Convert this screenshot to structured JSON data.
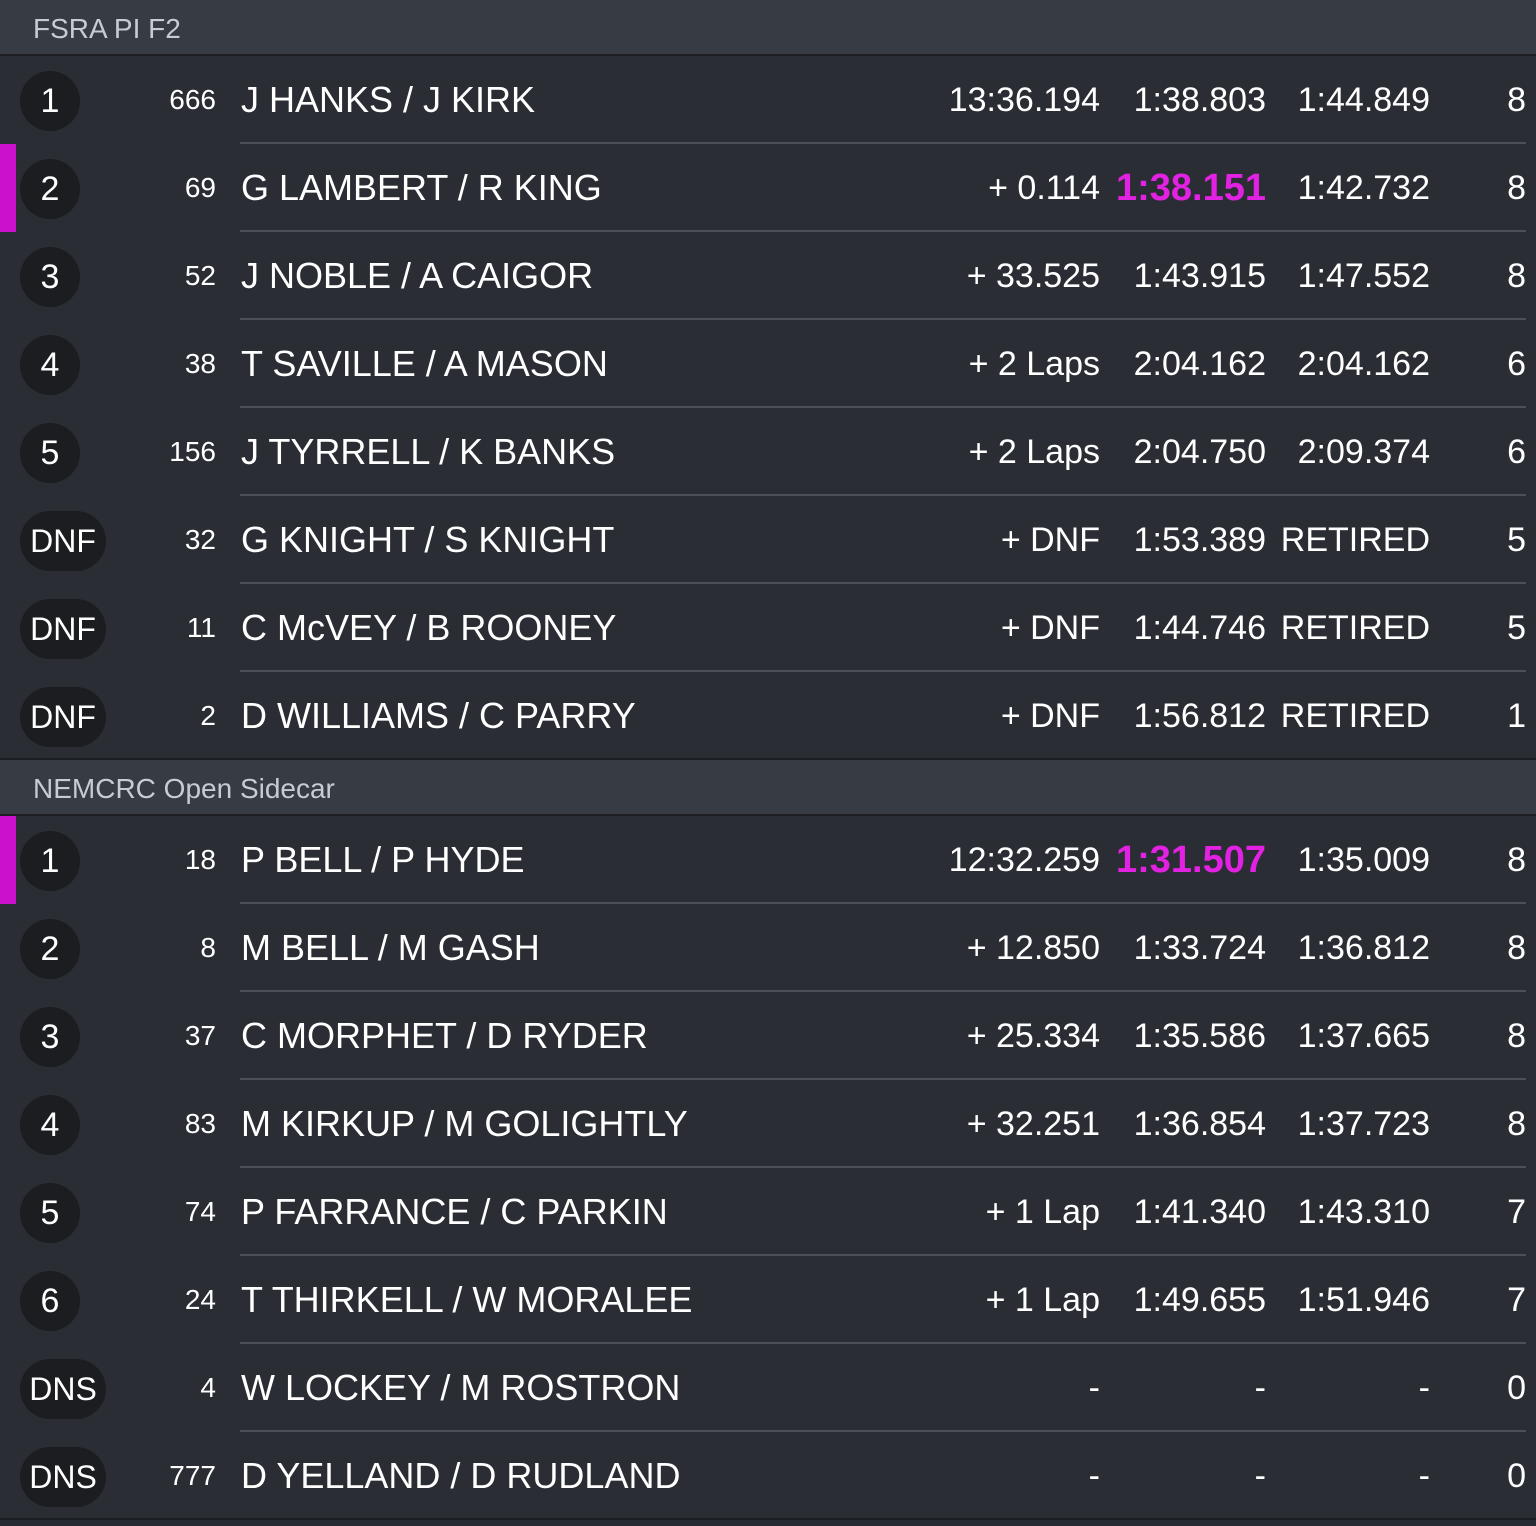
{
  "accent_color": "#cc11cc",
  "sections": [
    {
      "title": "FSRA PI F2",
      "rows": [
        {
          "pos": "1",
          "number": "666",
          "name": "J HANKS / J KIRK",
          "gap": "13:36.194",
          "best": "1:38.803",
          "last": "1:44.849",
          "laps": "8",
          "fastest": false
        },
        {
          "pos": "2",
          "number": "69",
          "name": "G LAMBERT / R KING",
          "gap": "+ 0.114",
          "best": "1:38.151",
          "last": "1:42.732",
          "laps": "8",
          "fastest": true
        },
        {
          "pos": "3",
          "number": "52",
          "name": "J NOBLE / A CAIGOR",
          "gap": "+ 33.525",
          "best": "1:43.915",
          "last": "1:47.552",
          "laps": "8",
          "fastest": false
        },
        {
          "pos": "4",
          "number": "38",
          "name": "T SAVILLE / A MASON",
          "gap": "+ 2 Laps",
          "best": "2:04.162",
          "last": "2:04.162",
          "laps": "6",
          "fastest": false
        },
        {
          "pos": "5",
          "number": "156",
          "name": "J TYRRELL / K BANKS",
          "gap": "+ 2 Laps",
          "best": "2:04.750",
          "last": "2:09.374",
          "laps": "6",
          "fastest": false
        },
        {
          "pos": "DNF",
          "number": "32",
          "name": "G KNIGHT / S KNIGHT",
          "gap": "+ DNF",
          "best": "1:53.389",
          "last": "RETIRED",
          "laps": "5",
          "fastest": false
        },
        {
          "pos": "DNF",
          "number": "11",
          "name": "C McVEY / B ROONEY",
          "gap": "+ DNF",
          "best": "1:44.746",
          "last": "RETIRED",
          "laps": "5",
          "fastest": false
        },
        {
          "pos": "DNF",
          "number": "2",
          "name": "D WILLIAMS / C PARRY",
          "gap": "+ DNF",
          "best": "1:56.812",
          "last": "RETIRED",
          "laps": "1",
          "fastest": false
        }
      ]
    },
    {
      "title": "NEMCRC Open Sidecar",
      "rows": [
        {
          "pos": "1",
          "number": "18",
          "name": "P BELL / P HYDE",
          "gap": "12:32.259",
          "best": "1:31.507",
          "last": "1:35.009",
          "laps": "8",
          "fastest": true
        },
        {
          "pos": "2",
          "number": "8",
          "name": "M BELL / M GASH",
          "gap": "+ 12.850",
          "best": "1:33.724",
          "last": "1:36.812",
          "laps": "8",
          "fastest": false
        },
        {
          "pos": "3",
          "number": "37",
          "name": "C MORPHET / D RYDER",
          "gap": "+ 25.334",
          "best": "1:35.586",
          "last": "1:37.665",
          "laps": "8",
          "fastest": false
        },
        {
          "pos": "4",
          "number": "83",
          "name": "M KIRKUP / M GOLIGHTLY",
          "gap": "+ 32.251",
          "best": "1:36.854",
          "last": "1:37.723",
          "laps": "8",
          "fastest": false
        },
        {
          "pos": "5",
          "number": "74",
          "name": "P FARRANCE / C PARKIN",
          "gap": "+ 1 Lap",
          "best": "1:41.340",
          "last": "1:43.310",
          "laps": "7",
          "fastest": false
        },
        {
          "pos": "6",
          "number": "24",
          "name": "T THIRKELL / W MORALEE",
          "gap": "+ 1 Lap",
          "best": "1:49.655",
          "last": "1:51.946",
          "laps": "7",
          "fastest": false
        },
        {
          "pos": "DNS",
          "number": "4",
          "name": "W LOCKEY / M ROSTRON",
          "gap": "-",
          "best": "-",
          "last": "-",
          "laps": "0",
          "fastest": false
        },
        {
          "pos": "DNS",
          "number": "777",
          "name": "D YELLAND / D RUDLAND",
          "gap": "-",
          "best": "-",
          "last": "-",
          "laps": "0",
          "fastest": false
        }
      ]
    }
  ]
}
